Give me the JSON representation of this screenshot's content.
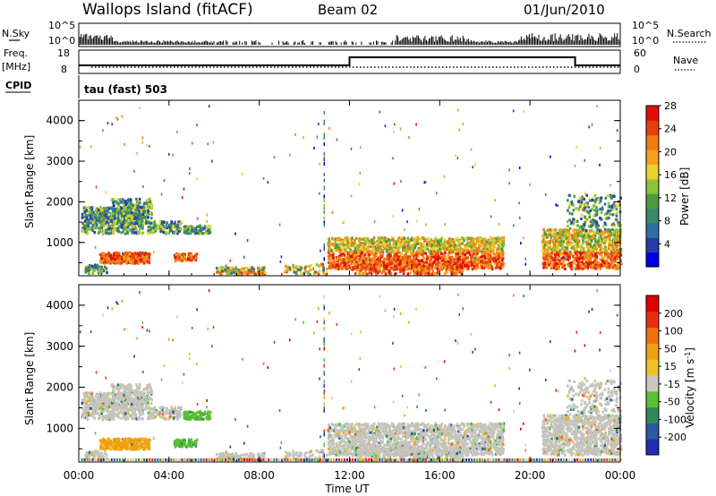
{
  "header": {
    "station": "Wallops Island (fitACF)",
    "beam": "Beam 02",
    "date": "01/Jun/2010"
  },
  "labels": {
    "nsky": "N.Sky",
    "nsearch": "N.Search",
    "freq_top": "Freq.",
    "freq_unit": "[MHz]",
    "nave": "Nave",
    "cpid": "CPID",
    "cpid_value": "tau (fast) 503"
  },
  "noise_axis": {
    "ticks": [
      "10^5",
      "10^0"
    ],
    "right_ticks": [
      "10^5",
      "10^0"
    ]
  },
  "freq_axis": {
    "ticks": [
      "18",
      "8"
    ],
    "right_ticks": [
      "60",
      "0"
    ]
  },
  "colors": {
    "power_scale": [
      "#0000e6",
      "#2a3aa8",
      "#2e6fa0",
      "#3a8a6a",
      "#4f9a3e",
      "#8cc23a",
      "#e8d22a",
      "#f0a21e",
      "#f07a14",
      "#e84010",
      "#e01008"
    ],
    "velocity_scale": [
      "#1f2fb0",
      "#2a5aa0",
      "#2f8a5a",
      "#58c034",
      "#c8c8c0",
      "#f0c028",
      "#f0a010",
      "#f07010",
      "#e83010",
      "#e00000"
    ],
    "ground_scatter": "#c4c4bc"
  },
  "chart_data": [
    {
      "type": "line",
      "name": "noise-sky-search",
      "x": [
        "00:00",
        "04:00",
        "08:00",
        "12:00",
        "16:00",
        "20:00",
        "00:00"
      ],
      "ylabel_left": "N.Sky",
      "ylabel_right": "N.Search"
    },
    {
      "type": "line",
      "name": "frequency-nave",
      "x": [
        "00:00",
        "04:00",
        "08:00",
        "12:00",
        "16:00",
        "20:00",
        "00:00"
      ],
      "step_change_hours": [
        12.0,
        22.0
      ],
      "ylabel_left": "Freq. [MHz]",
      "ylabel_right": "Nave"
    },
    {
      "type": "heatmap",
      "name": "power",
      "title": "",
      "xlabel": "",
      "ylabel": "Slant Range [km]",
      "x_ticks": [
        "00:00",
        "04:00",
        "08:00",
        "12:00",
        "16:00",
        "20:00",
        "00:00"
      ],
      "y_ticks": [
        1000,
        2000,
        3000,
        4000
      ],
      "ylim": [
        180,
        4500
      ],
      "xlim_hours": [
        0,
        24
      ],
      "colorbar_label": "Power [dB]",
      "colorbar_ticks": [
        4,
        8,
        12,
        16,
        20,
        24,
        28
      ]
    },
    {
      "type": "heatmap",
      "name": "velocity",
      "title": "",
      "xlabel": "Time UT",
      "ylabel": "Slant Range [km]",
      "x_ticks": [
        "00:00",
        "04:00",
        "08:00",
        "12:00",
        "16:00",
        "20:00",
        "00:00"
      ],
      "y_ticks": [
        1000,
        2000,
        3000,
        4000
      ],
      "ylim": [
        180,
        4500
      ],
      "xlim_hours": [
        0,
        24
      ],
      "colorbar_label": "Velocity [m s^-1]",
      "colorbar_ticks": [
        "200",
        "100",
        "50",
        "15",
        "-15",
        "-50",
        "-100",
        "-200"
      ]
    }
  ]
}
